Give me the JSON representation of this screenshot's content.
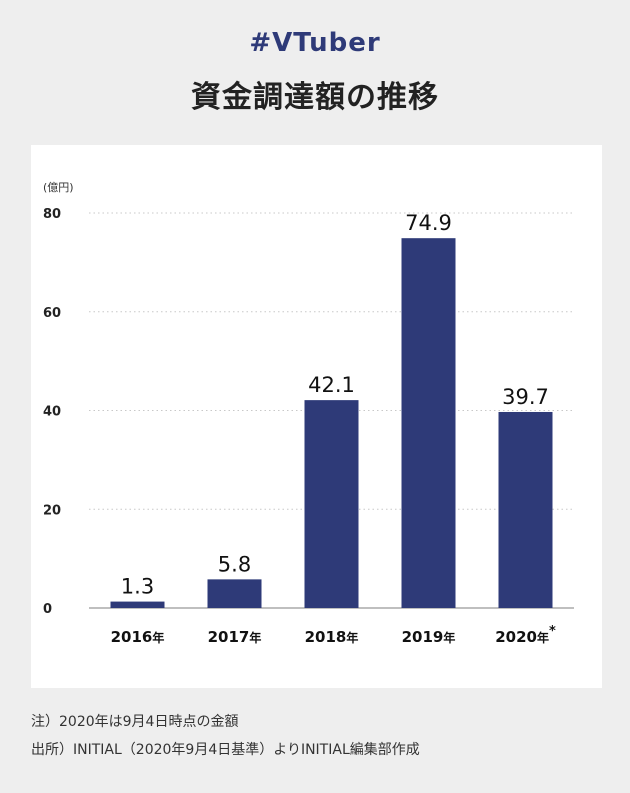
{
  "header": {
    "hashtag": "#VTuber",
    "title": "資金調達額の推移"
  },
  "colors": {
    "bar": "#2e3a78",
    "hashtag": "#2e3a78",
    "background": "#eeeeee",
    "panel": "#ffffff",
    "grid": "#c8c8c8"
  },
  "chart_data": {
    "type": "bar",
    "unit_label": "(億円)",
    "categories": [
      "2016年",
      "2017年",
      "2018年",
      "2019年",
      "2020年*"
    ],
    "values": [
      1.3,
      5.8,
      42.1,
      74.9,
      39.7
    ],
    "value_labels": [
      "1.3",
      "5.8",
      "42.1",
      "74.9",
      "39.7"
    ],
    "ylim": [
      0,
      80
    ],
    "yticks": [
      0,
      20,
      40,
      60,
      80
    ],
    "grid": true,
    "legend": "none"
  },
  "notes": {
    "note1": "注）2020年は9月4日時点の金額",
    "note2": "出所）INITIAL（2020年9月4日基準）よりINITIAL編集部作成"
  }
}
